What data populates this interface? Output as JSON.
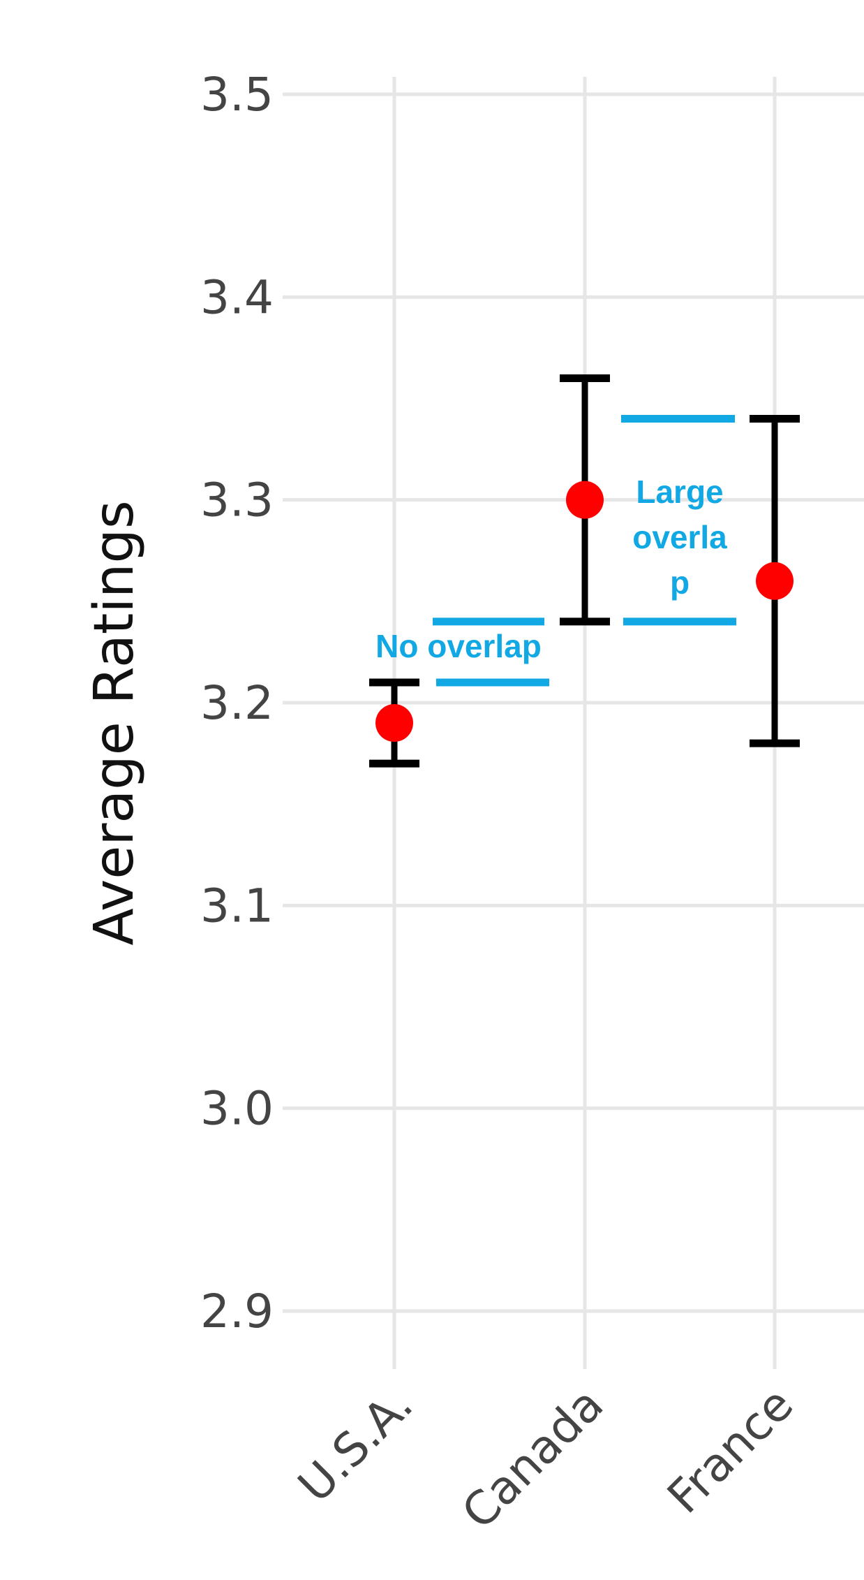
{
  "chart_data": {
    "type": "scatter",
    "title": "",
    "xlabel": "",
    "ylabel": "Average Ratings",
    "ylim": [
      2.9,
      3.5
    ],
    "yticks": [
      "3.5",
      "3.4",
      "3.3",
      "3.2",
      "3.1",
      "3.0",
      "2.9"
    ],
    "ytick_values": [
      3.5,
      3.4,
      3.3,
      3.2,
      3.1,
      3.0,
      2.9
    ],
    "grid": true,
    "legend": "none",
    "categories": [
      "U.S.A.",
      "Canada",
      "France"
    ],
    "series": [
      {
        "values": [
          3.19,
          3.3,
          3.26
        ],
        "error_low": [
          3.17,
          3.24,
          3.18
        ],
        "error_high": [
          3.21,
          3.36,
          3.34
        ]
      }
    ],
    "colors": {
      "point": "#ff0000",
      "error_bar": "#000000",
      "annotation": "#12a8e3",
      "grid": "#e6e6e6"
    },
    "annotations": [
      {
        "text": "No overlap",
        "between": [
          "U.S.A.",
          "Canada"
        ],
        "compare_lines": [
          3.21,
          3.24
        ]
      },
      {
        "text_lines": [
          "Large",
          "overla",
          "p"
        ],
        "between": [
          "Canada",
          "France"
        ],
        "compare_lines": [
          3.34,
          3.24
        ]
      }
    ]
  }
}
